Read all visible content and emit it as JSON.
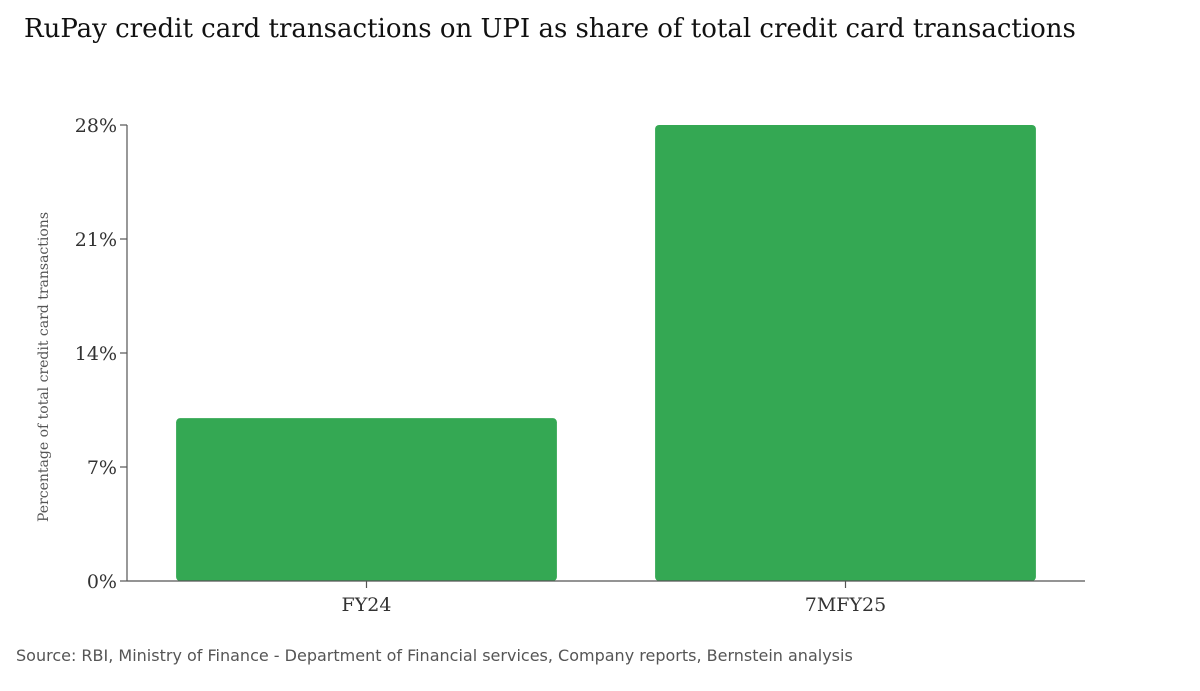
{
  "chart_data": {
    "type": "bar",
    "title": "RuPay credit card transactions on UPI as share of total credit card transactions",
    "xlabel": "",
    "ylabel": "Percentage of total credit card transactions",
    "categories": [
      "FY24",
      "7MFY25"
    ],
    "values": [
      10,
      28
    ],
    "ylim": [
      0,
      28
    ],
    "yticks": [
      0,
      7,
      14,
      21,
      28
    ],
    "ytick_suffix": "%",
    "grid": false,
    "bar_color": "#34a853",
    "axis_color": "#555555"
  },
  "source": "Source: RBI, Ministry of Finance - Department of Financial services, Company reports, Bernstein analysis"
}
